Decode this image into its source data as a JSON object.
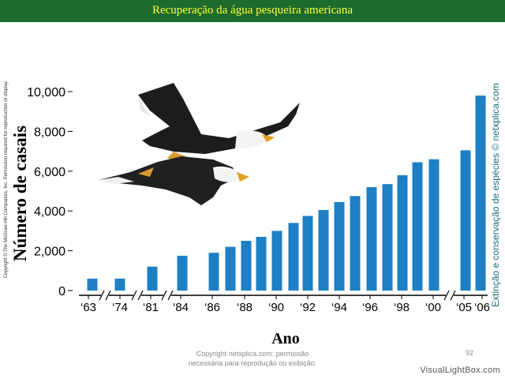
{
  "page": {
    "title": "Recuperação da água pesqueira americana",
    "side_copyright": "Copyright © The McGraw-Hill Companies, Inc. Permission required for reproduction or display.",
    "right_credit": "Extinção e conservação de espécies © netxplica.com",
    "footer_line1": "Copyright netxplica.com: permissão",
    "footer_line2": "necessária para reprodução ou exibição.",
    "page_number": "92",
    "watermark": "VisualLightBox.com"
  },
  "colors": {
    "title_bar": "#1e6b2e",
    "title_text": "#ffff33",
    "bar": "#1f7fc4",
    "credit": "#1a6f75"
  },
  "chart_data": {
    "type": "bar",
    "title": "",
    "xlabel": "Ano",
    "ylabel": "Número de casais",
    "ylim": [
      0,
      10000
    ],
    "yticks": [
      "0",
      "2,000",
      "4,000",
      "6,000",
      "8,000",
      "10,000"
    ],
    "ytick_values": [
      0,
      2000,
      4000,
      6000,
      8000,
      10000
    ],
    "grid": false,
    "legend": "none",
    "axis_breaks": [
      "1963-1974",
      "1974-1981",
      "1981-1984",
      "2000-2005"
    ],
    "x_tick_labels": [
      "‘63",
      "‘74",
      "‘81",
      "‘84",
      "‘86",
      "‘88",
      "‘90",
      "‘92",
      "‘94",
      "‘96",
      "‘98",
      "‘00",
      "‘05",
      "‘06"
    ],
    "categories": [
      "1963",
      "1974",
      "1981",
      "1984",
      "1986",
      "1987",
      "1988",
      "1989",
      "1990",
      "1991",
      "1992",
      "1993",
      "1994",
      "1995",
      "1996",
      "1997",
      "1998",
      "1999",
      "2000",
      "2005",
      "2006"
    ],
    "values": [
      600,
      600,
      1200,
      1750,
      1900,
      2200,
      2500,
      2700,
      3000,
      3400,
      3750,
      4050,
      4450,
      4750,
      5200,
      5350,
      5800,
      6450,
      6600,
      7050,
      9800
    ]
  }
}
